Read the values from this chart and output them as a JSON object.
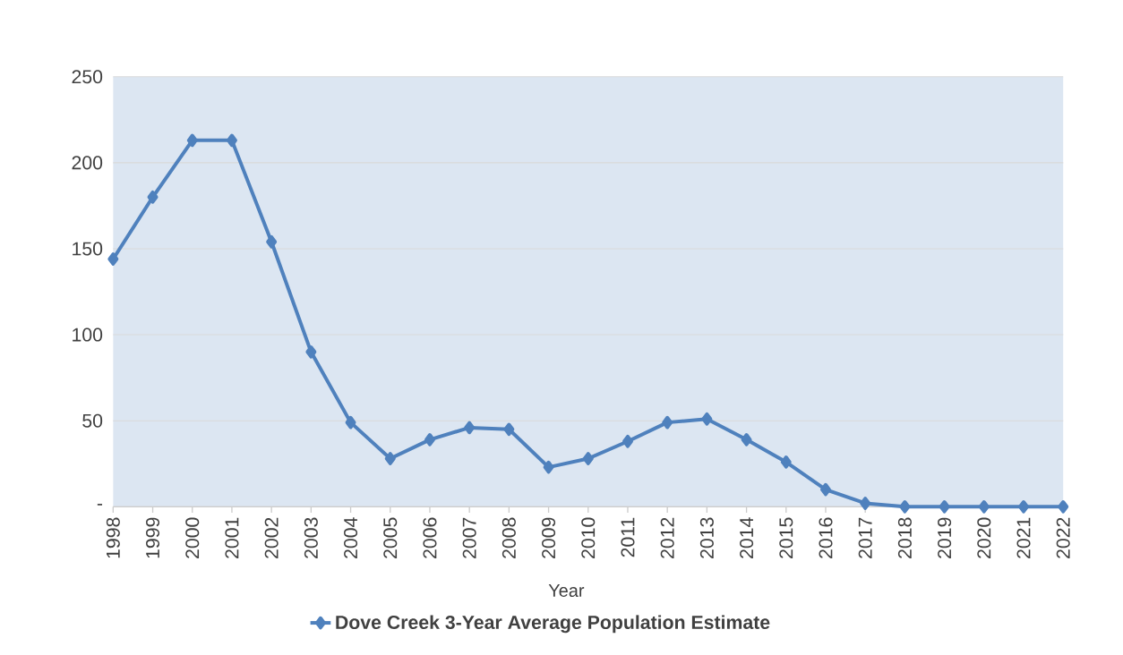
{
  "chart_data": {
    "type": "line",
    "xlabel": "Year",
    "categories": [
      "1998",
      "1999",
      "2000",
      "2001",
      "2002",
      "2003",
      "2004",
      "2005",
      "2006",
      "2007",
      "2008",
      "2009",
      "2010",
      "2011",
      "2012",
      "2013",
      "2014",
      "2015",
      "2016",
      "2017",
      "2018",
      "2019",
      "2020",
      "2021",
      "2022"
    ],
    "series": [
      {
        "name": "Dove Creek 3-Year Average Population Estimate",
        "color": "#4f81bd",
        "values": [
          144,
          180,
          213,
          213,
          154,
          90,
          49,
          28,
          39,
          46,
          45,
          23,
          28,
          38,
          49,
          51,
          39,
          26,
          10,
          2,
          0,
          0,
          0,
          0,
          0
        ]
      }
    ],
    "ylim": [
      0,
      250
    ],
    "yticks": [
      {
        "value": 0,
        "label": "-"
      },
      50,
      100,
      150,
      200,
      250
    ],
    "grid": "y",
    "legend": "bottom",
    "marker": "diamond",
    "line_style": "solid"
  }
}
